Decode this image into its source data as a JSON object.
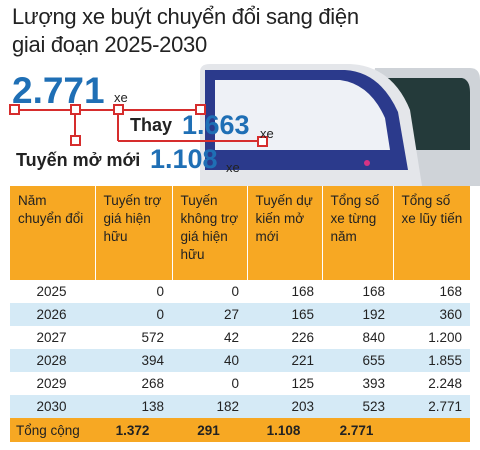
{
  "header": {
    "title": [
      "Lượng xe buýt chuyển đổi sang điện",
      "giai đoạn 2025-2030"
    ]
  },
  "summary": {
    "total": {
      "value": "2.771",
      "unit": "xe"
    },
    "replace": {
      "label": "Thay",
      "value": "1.663",
      "unit": "xe"
    },
    "new_routes": {
      "label": "Tuyến mở mới",
      "value": "1.108",
      "unit": "xe"
    }
  },
  "table": {
    "header": [
      "Năm chuyển đổi",
      "Tuyến trợ giá hiện hữu",
      "Tuyến không trợ giá hiện hữu",
      "Tuyến dự kiến mở mới",
      "Tổng số xe từng năm",
      "Tổng số xe lũy tiến"
    ],
    "rows": [
      [
        "2025",
        "0",
        "0",
        "168",
        "168",
        "168"
      ],
      [
        "2026",
        "0",
        "27",
        "165",
        "192",
        "360"
      ],
      [
        "2027",
        "572",
        "42",
        "226",
        "840",
        "1.200"
      ],
      [
        "2028",
        "394",
        "40",
        "221",
        "655",
        "1.855"
      ],
      [
        "2029",
        "268",
        "0",
        "125",
        "393",
        "2.248"
      ],
      [
        "2030",
        "138",
        "182",
        "203",
        "523",
        "2.771"
      ]
    ],
    "total": [
      "Tổng cộng",
      "1.372",
      "291",
      "1.108",
      "2.771"
    ]
  }
}
